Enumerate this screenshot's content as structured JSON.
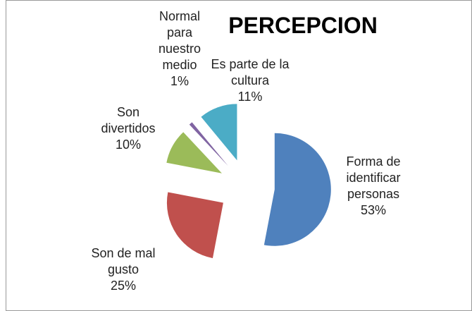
{
  "chart_data": {
    "type": "pie",
    "title": "PERCEPCION",
    "categories": [
      "Forma de identificar personas",
      "Son de mal gusto",
      "Son divertidos",
      "Normal para nuestro medio",
      "Es parte de la cultura"
    ],
    "values": [
      53,
      25,
      10,
      1,
      11
    ],
    "value_labels": [
      "53%",
      "25%",
      "10%",
      "1%",
      "11%"
    ],
    "colors": [
      "#4f81bd",
      "#c0504d",
      "#9bbb59",
      "#8064a2",
      "#4bacc6"
    ]
  }
}
